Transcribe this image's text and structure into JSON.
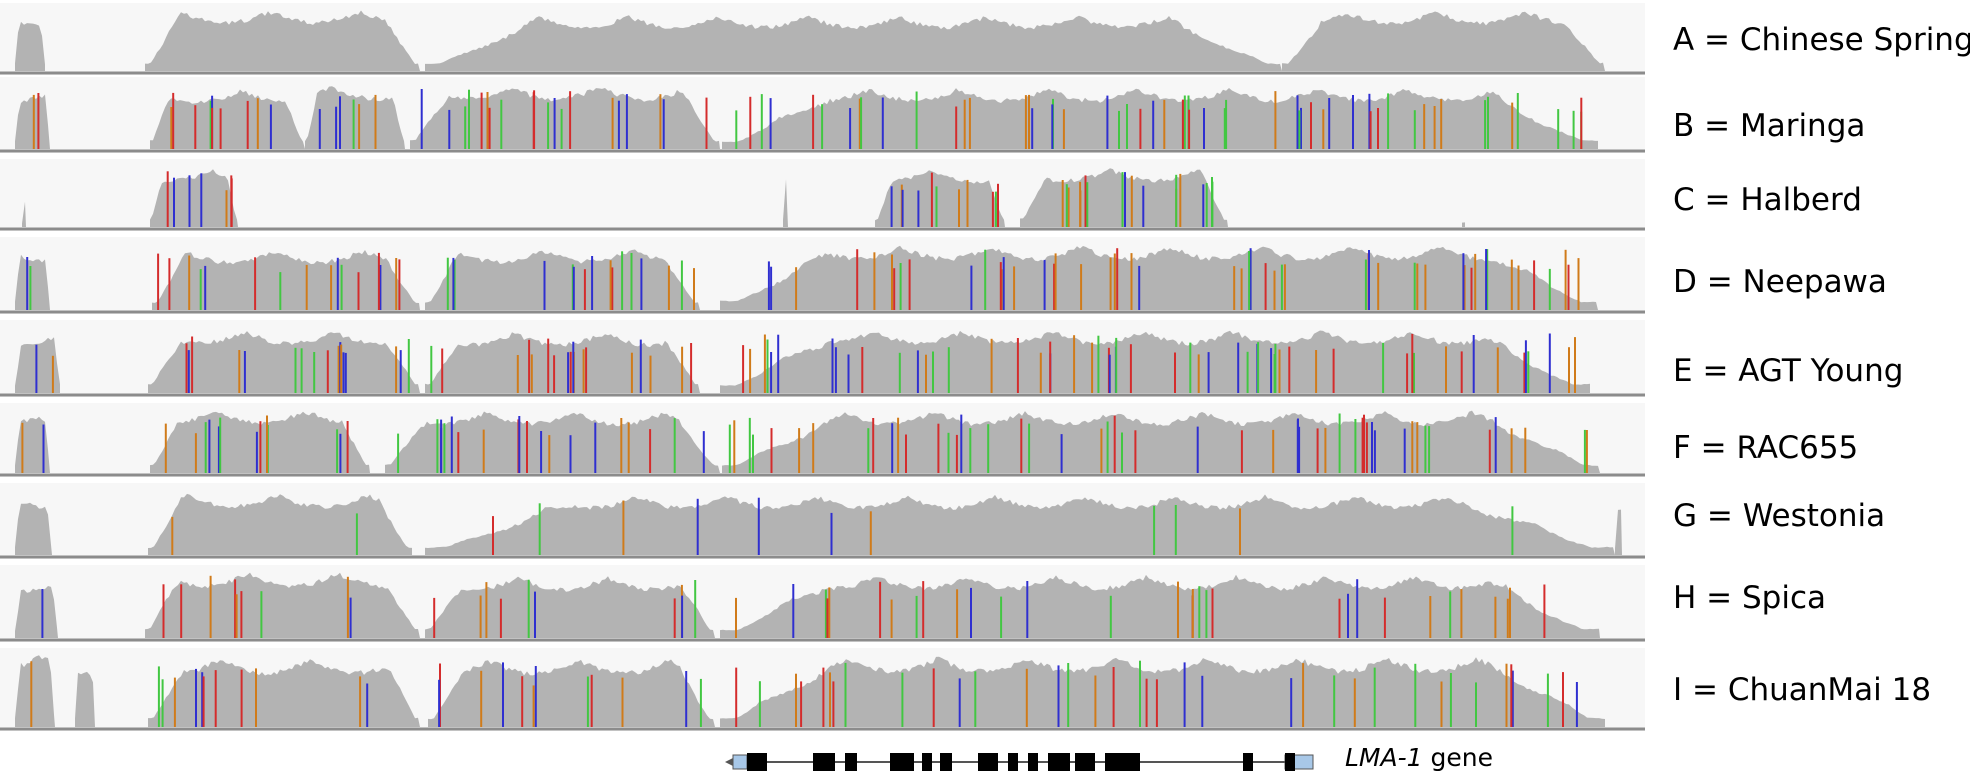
{
  "colors": {
    "coverage": "#b3b3b3",
    "track_background": "#f7f7f7",
    "track_divider": "#8c8c8c",
    "snp_A": "#42c742",
    "snp_C": "#2f2fd0",
    "snp_G": "#d07b1a",
    "snp_T": "#d42c2c",
    "exon": "#000000",
    "utr": "#a8c8e8"
  },
  "samples": [
    {
      "letter": "A",
      "name": "Chinese Spring",
      "label": "A = Chinese Spring"
    },
    {
      "letter": "B",
      "name": "Maringa",
      "label": "B = Maringa"
    },
    {
      "letter": "C",
      "name": "Halberd",
      "label": "C = Halberd"
    },
    {
      "letter": "D",
      "name": "Neepawa",
      "label": "D = Neepawa"
    },
    {
      "letter": "E",
      "name": "AGT Young",
      "label": "E = AGT Young"
    },
    {
      "letter": "F",
      "name": "RAC655",
      "label": "F = RAC655"
    },
    {
      "letter": "G",
      "name": "Westonia",
      "label": "G = Westonia"
    },
    {
      "letter": "H",
      "name": "Spica",
      "label": "H = Spica"
    },
    {
      "letter": "I",
      "name": "ChuanMai 18",
      "label": "I = ChuanMai 18"
    }
  ],
  "gene": {
    "name": "LMA-1",
    "suffix": " gene",
    "strand": "reverse"
  }
}
